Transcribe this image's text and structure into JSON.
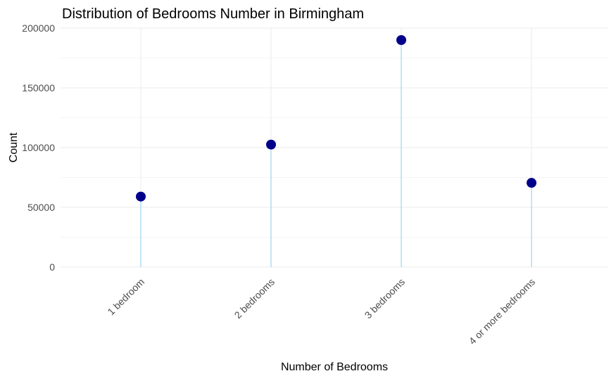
{
  "chart_data": {
    "type": "lollipop",
    "title": "Distribution of Bedrooms Number in Birmingham",
    "xlabel": "Number of Bedrooms",
    "ylabel": "Count",
    "categories": [
      "1 bedroom",
      "2 bedrooms",
      "3 bedrooms",
      "4 or more bedrooms"
    ],
    "values": [
      59000,
      102500,
      190000,
      70500
    ],
    "ylim": [
      0,
      200000
    ],
    "yticks": [
      0,
      50000,
      100000,
      150000,
      200000
    ],
    "ytick_labels": [
      "0",
      "50000",
      "100000",
      "150000",
      "200000"
    ],
    "grid": true,
    "legend": "none",
    "colors": {
      "stem": "#87ceeb",
      "point": "#00008b",
      "grid_major": "#ebebeb",
      "grid_minor": "#f2f2f2",
      "tick_text": "#4d4d4d"
    }
  }
}
